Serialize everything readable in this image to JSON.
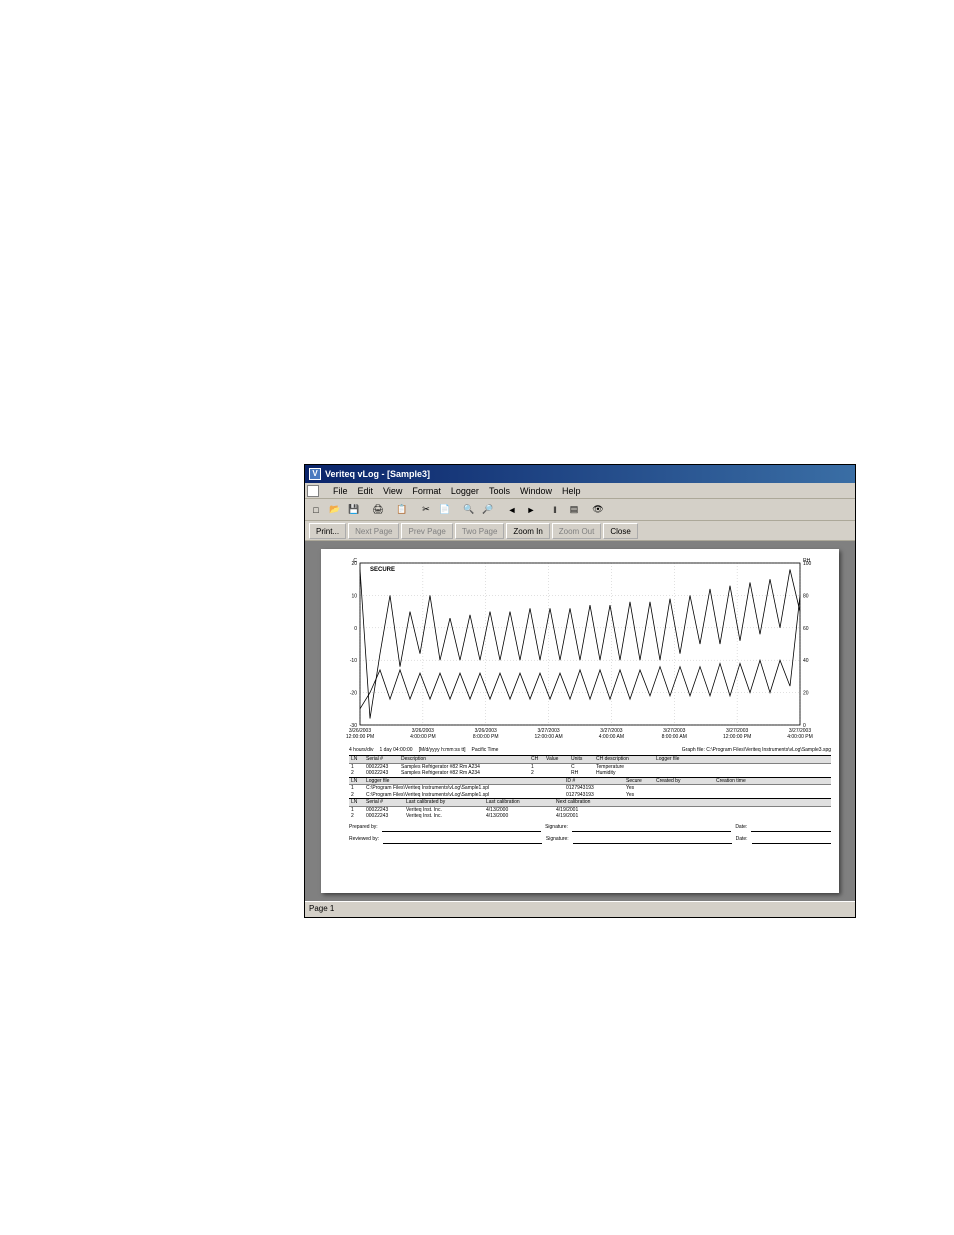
{
  "window": {
    "title": "Veriteq vLog - [Sample3]",
    "icon_letter": "V"
  },
  "menus": [
    "File",
    "Edit",
    "View",
    "Format",
    "Logger",
    "Tools",
    "Window",
    "Help"
  ],
  "toolbar_icons": [
    {
      "name": "new-icon",
      "glyph": "□"
    },
    {
      "name": "open-icon",
      "glyph": "📂"
    },
    {
      "name": "save-icon",
      "glyph": "💾"
    },
    {
      "name": "sep"
    },
    {
      "name": "print-icon",
      "glyph": "🖨"
    },
    {
      "name": "sep"
    },
    {
      "name": "copy-icon",
      "glyph": "📋"
    },
    {
      "name": "sep"
    },
    {
      "name": "cut-icon",
      "glyph": "✂"
    },
    {
      "name": "paste-icon",
      "glyph": "📄"
    },
    {
      "name": "sep"
    },
    {
      "name": "zoomin-icon",
      "glyph": "🔍"
    },
    {
      "name": "zoomout-icon",
      "glyph": "🔎"
    },
    {
      "name": "sep"
    },
    {
      "name": "prev-icon",
      "glyph": "◄"
    },
    {
      "name": "next-icon",
      "glyph": "►"
    },
    {
      "name": "sep"
    },
    {
      "name": "pause-icon",
      "glyph": "‖"
    },
    {
      "name": "export-icon",
      "glyph": "▤"
    },
    {
      "name": "sep"
    },
    {
      "name": "preview-icon",
      "glyph": "👁"
    }
  ],
  "toolbar2": [
    {
      "label": "Print...",
      "enabled": true,
      "name": "print-button"
    },
    {
      "label": "Next Page",
      "enabled": false,
      "name": "next-page-button"
    },
    {
      "label": "Prev Page",
      "enabled": false,
      "name": "prev-page-button"
    },
    {
      "label": "Two Page",
      "enabled": false,
      "name": "two-page-button"
    },
    {
      "label": "Zoom In",
      "enabled": true,
      "name": "zoom-in-button"
    },
    {
      "label": "Zoom Out",
      "enabled": false,
      "name": "zoom-out-button"
    },
    {
      "label": "Close",
      "enabled": true,
      "name": "close-button"
    }
  ],
  "chart": {
    "secure_label": "SECURE",
    "left_axis": {
      "label": "C",
      "ticks": [
        20,
        10,
        0,
        -10,
        -20,
        -30
      ]
    },
    "right_axis": {
      "label": "RH",
      "ticks": [
        100,
        80,
        60,
        40,
        20,
        0
      ]
    },
    "x_labels": [
      {
        "d": "3/26/2003",
        "t": "12:00:00 PM"
      },
      {
        "d": "3/26/2003",
        "t": "4:00:00 PM"
      },
      {
        "d": "3/26/2003",
        "t": "8:00:00 PM"
      },
      {
        "d": "3/27/2003",
        "t": "12:00:00 AM"
      },
      {
        "d": "3/27/2003",
        "t": "4:00:00 AM"
      },
      {
        "d": "3/27/2003",
        "t": "8:00:00 AM"
      },
      {
        "d": "3/27/2003",
        "t": "12:00:00 PM"
      },
      {
        "d": "3/27/2003",
        "t": "4:00:00 PM"
      }
    ],
    "info_line": {
      "hours_div": "4 hours/div",
      "span": "1 day 04:00:00",
      "fmt": "[M/d/yyyy h:mm:ss tt]",
      "tz": "Pacific Time",
      "graph_file": "Graph file: C:\\Program Files\\Veriteq Instruments\\vLog\\Sample3.spg"
    },
    "grid_color": "#c0c0c0",
    "line_color": "#000000",
    "bg_color": "#ffffff",
    "upper_series": [
      18,
      -28,
      -8,
      10,
      -12,
      5,
      -8,
      10,
      -10,
      3,
      -10,
      4,
      -10,
      5,
      -10,
      5,
      -10,
      6,
      -10,
      6,
      -10,
      6,
      -10,
      7,
      -10,
      7,
      -10,
      8,
      -10,
      8,
      -10,
      9,
      -8,
      10,
      -5,
      12,
      -5,
      13,
      -4,
      14,
      -2,
      15,
      0,
      18,
      5
    ],
    "lower_series": [
      -25,
      -20,
      -13,
      -22,
      -13,
      -22,
      -14,
      -22,
      -14,
      -22,
      -14,
      -22,
      -14,
      -22,
      -14,
      -22,
      -14,
      -22,
      -14,
      -22,
      -14,
      -22,
      -13,
      -22,
      -13,
      -22,
      -13,
      -22,
      -13,
      -21,
      -12,
      -21,
      -12,
      -21,
      -12,
      -21,
      -11,
      -21,
      -11,
      -20,
      -10,
      -20,
      -10,
      -18,
      10
    ]
  },
  "tables": {
    "t1": {
      "headers": [
        "LN",
        "Serial #",
        "Description",
        "CH",
        "Value",
        "Units",
        "CH description",
        "Logger file"
      ],
      "rows": [
        [
          "1",
          "00022243",
          "Samples Refrigerator #82 Rm A234",
          "1",
          "",
          "C",
          "Temperature",
          ""
        ],
        [
          "2",
          "00022243",
          "Samples Refrigerator #82 Rm A234",
          "2",
          "",
          "RH",
          "Humidity",
          ""
        ]
      ]
    },
    "t2": {
      "headers": [
        "LN",
        "Logger file",
        "ID #",
        "Secure",
        "Created by",
        "Creation time"
      ],
      "rows": [
        [
          "1",
          "C:\\Program Files\\Veriteq Instruments\\vLog\\Sample1.spl",
          "0127943193",
          "Yes",
          "",
          ""
        ],
        [
          "2",
          "C:\\Program Files\\Veriteq Instruments\\vLog\\Sample1.spl",
          "0127943193",
          "Yes",
          "",
          ""
        ]
      ]
    },
    "t3": {
      "headers": [
        "LN",
        "Serial #",
        "Last calibrated by",
        "Last calibration",
        "Next calibration"
      ],
      "rows": [
        [
          "1",
          "00022243",
          "Veriteq Inst. Inc.",
          "4/13/2000",
          "4/19/2001"
        ],
        [
          "2",
          "00022243",
          "Veriteq Inst. Inc.",
          "4/13/2000",
          "4/19/2001"
        ]
      ]
    }
  },
  "signatures": {
    "prepared": "Prepared by:",
    "reviewed": "Reviewed by:",
    "signature": "Signature:",
    "date": "Date:"
  },
  "status": "Page 1"
}
